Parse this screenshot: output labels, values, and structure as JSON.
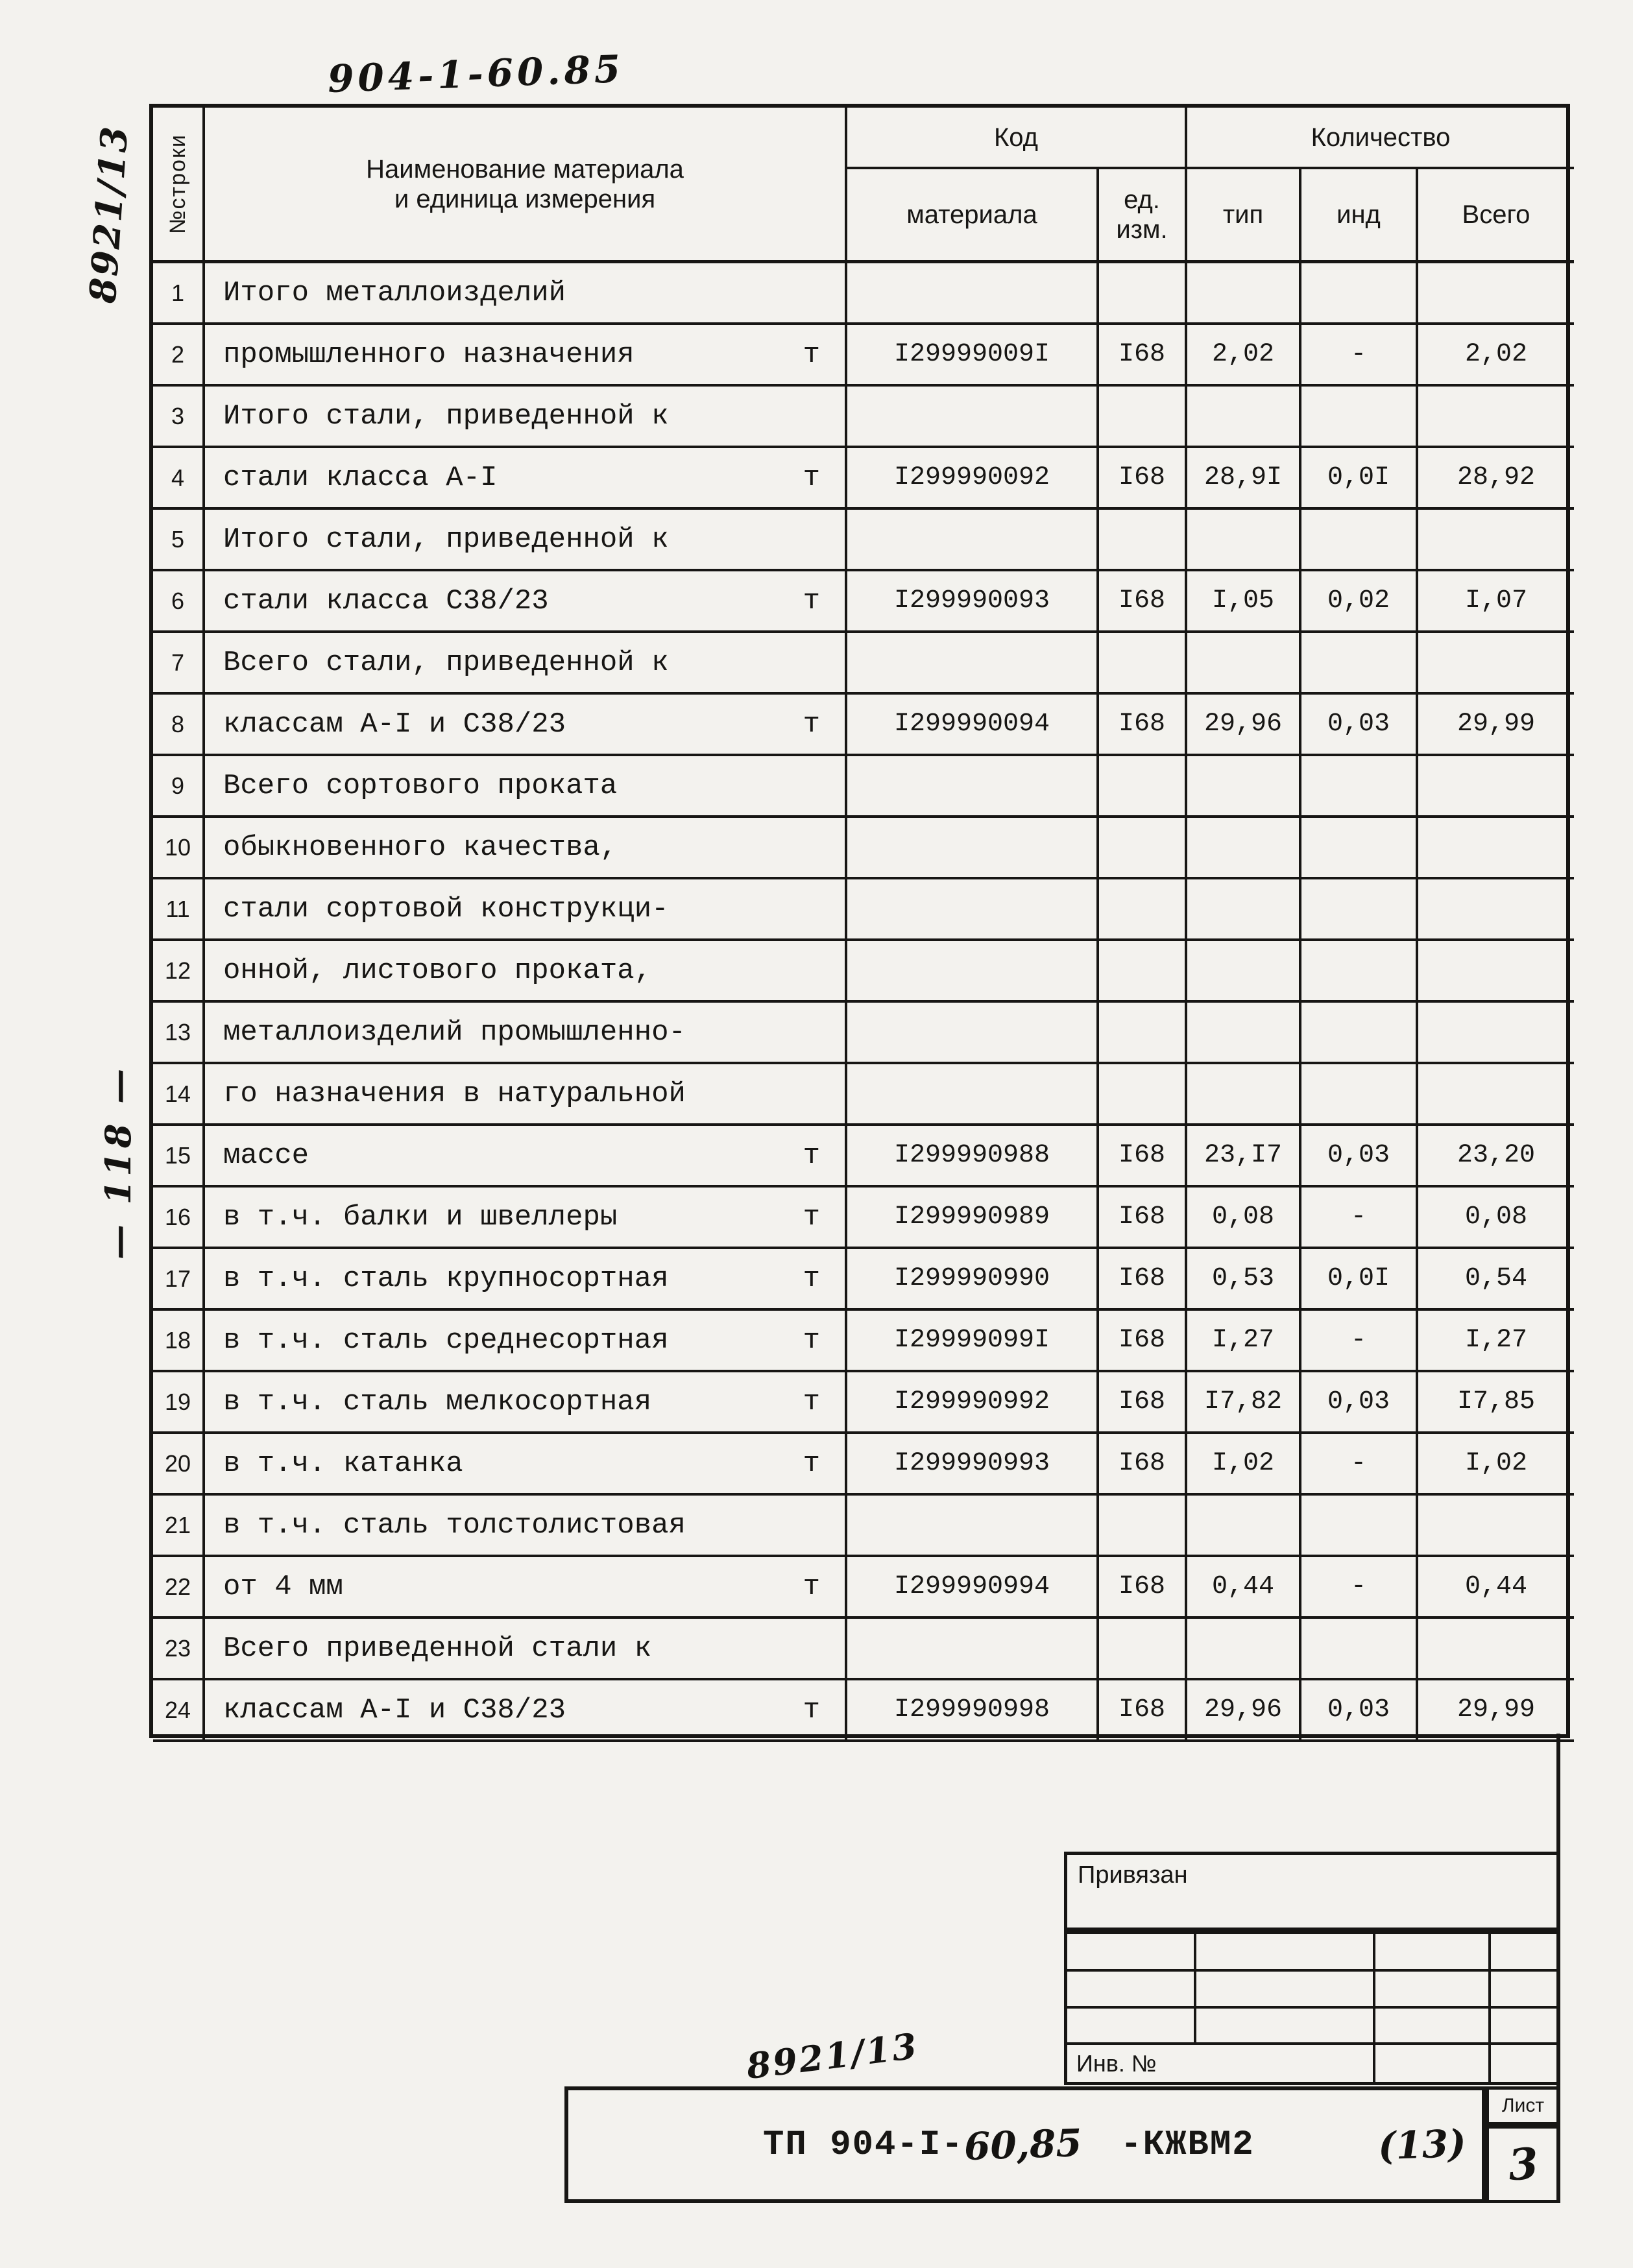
{
  "annotations": {
    "top_code": "904-1-60.85",
    "side_code": "8921/13",
    "margin_note": "— 118 —",
    "bottom_code": "8921/13"
  },
  "table": {
    "headers": {
      "row_no": "№строки",
      "name_line1": "Наименование материала",
      "name_line2": "и единица измерения",
      "code_group": "Код",
      "qty_group": "Количество",
      "code_material": "материала",
      "unit_line1": "ед.",
      "unit_line2": "изм.",
      "qty_tip": "тип",
      "qty_ind": "инд",
      "qty_total": "Всего"
    },
    "rows": [
      {
        "n": "1",
        "name": "Итого металлоизделий",
        "unit": "",
        "code": "",
        "u": "",
        "tip": "",
        "ind": "",
        "total": ""
      },
      {
        "n": "2",
        "name": "промышленного назначения",
        "unit": "т",
        "code": "I29999009I",
        "u": "I68",
        "tip": "2,02",
        "ind": "-",
        "total": "2,02"
      },
      {
        "n": "3",
        "name": "Итого стали, приведенной к",
        "unit": "",
        "code": "",
        "u": "",
        "tip": "",
        "ind": "",
        "total": ""
      },
      {
        "n": "4",
        "name": "стали класса А-I",
        "unit": "т",
        "code": "I299990092",
        "u": "I68",
        "tip": "28,9I",
        "ind": "0,0I",
        "total": "28,92"
      },
      {
        "n": "5",
        "name": "Итого стали, приведенной к",
        "unit": "",
        "code": "",
        "u": "",
        "tip": "",
        "ind": "",
        "total": ""
      },
      {
        "n": "6",
        "name": "стали класса С38/23",
        "unit": "т",
        "code": "I299990093",
        "u": "I68",
        "tip": "I,05",
        "ind": "0,02",
        "total": "I,07"
      },
      {
        "n": "7",
        "name": "Всего стали, приведенной к",
        "unit": "",
        "code": "",
        "u": "",
        "tip": "",
        "ind": "",
        "total": ""
      },
      {
        "n": "8",
        "name": "классам А-I и С38/23",
        "unit": "т",
        "code": "I299990094",
        "u": "I68",
        "tip": "29,96",
        "ind": "0,03",
        "total": "29,99"
      },
      {
        "n": "9",
        "name": "Всего сортового проката",
        "unit": "",
        "code": "",
        "u": "",
        "tip": "",
        "ind": "",
        "total": ""
      },
      {
        "n": "10",
        "name": "обыкновенного качества,",
        "unit": "",
        "code": "",
        "u": "",
        "tip": "",
        "ind": "",
        "total": ""
      },
      {
        "n": "11",
        "name": "стали сортовой конструкци-",
        "unit": "",
        "code": "",
        "u": "",
        "tip": "",
        "ind": "",
        "total": ""
      },
      {
        "n": "12",
        "name": "онной, листового проката,",
        "unit": "",
        "code": "",
        "u": "",
        "tip": "",
        "ind": "",
        "total": ""
      },
      {
        "n": "13",
        "name": "металлоизделий промышленно-",
        "unit": "",
        "code": "",
        "u": "",
        "tip": "",
        "ind": "",
        "total": ""
      },
      {
        "n": "14",
        "name": "го назначения в натуральной",
        "unit": "",
        "code": "",
        "u": "",
        "tip": "",
        "ind": "",
        "total": ""
      },
      {
        "n": "15",
        "name": "массе",
        "unit": "т",
        "code": "I299990988",
        "u": "I68",
        "tip": "23,I7",
        "ind": "0,03",
        "total": "23,20"
      },
      {
        "n": "16",
        "name": "в т.ч. балки и швеллеры",
        "unit": "т",
        "code": "I299990989",
        "u": "I68",
        "tip": "0,08",
        "ind": "-",
        "total": "0,08"
      },
      {
        "n": "17",
        "name": "в т.ч. сталь крупносортная",
        "unit": "т",
        "code": "I299990990",
        "u": "I68",
        "tip": "0,53",
        "ind": "0,0I",
        "total": "0,54"
      },
      {
        "n": "18",
        "name": "в т.ч. сталь среднесортная",
        "unit": "т",
        "code": "I29999099I",
        "u": "I68",
        "tip": "I,27",
        "ind": "-",
        "total": "I,27"
      },
      {
        "n": "19",
        "name": "в т.ч. сталь мелкосортная",
        "unit": "т",
        "code": "I299990992",
        "u": "I68",
        "tip": "I7,82",
        "ind": "0,03",
        "total": "I7,85"
      },
      {
        "n": "20",
        "name": "в т.ч. катанка",
        "unit": "т",
        "code": "I299990993",
        "u": "I68",
        "tip": "I,02",
        "ind": "-",
        "total": "I,02"
      },
      {
        "n": "21",
        "name": "в т.ч. сталь толстолистовая",
        "unit": "",
        "code": "",
        "u": "",
        "tip": "",
        "ind": "",
        "total": ""
      },
      {
        "n": "22",
        "name": "от 4 мм",
        "unit": "т",
        "code": "I299990994",
        "u": "I68",
        "tip": "0,44",
        "ind": "-",
        "total": "0,44"
      },
      {
        "n": "23",
        "name": "Всего приведенной стали к",
        "unit": "",
        "code": "",
        "u": "",
        "tip": "",
        "ind": "",
        "total": ""
      },
      {
        "n": "24",
        "name": "классам А-I и С38/23",
        "unit": "т",
        "code": "I299990998",
        "u": "I68",
        "tip": "29,96",
        "ind": "0,03",
        "total": "29,99"
      }
    ]
  },
  "stamp": {
    "bound_label": "Привязан",
    "inv_label": "Инв. №",
    "sheet_label": "Лист",
    "sheet_number": "3",
    "title_typed_prefix": "ТП 904-I-",
    "title_handwritten_number": "60,85",
    "title_typed_suffix": "-КЖВМ2",
    "title_handwritten_note": "(13)"
  },
  "colors": {
    "ink": "#171614",
    "paper": "#f3f2ee"
  }
}
